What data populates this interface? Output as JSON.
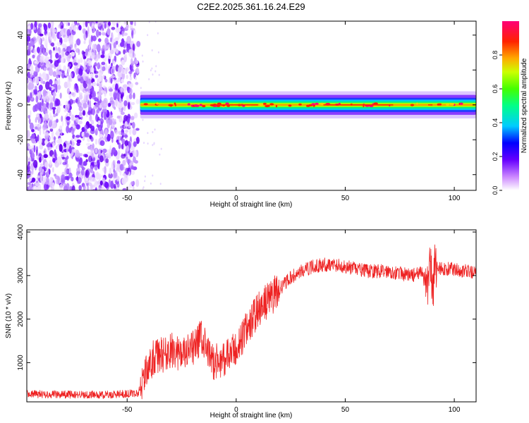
{
  "figure_title": "C2E2.2025.361.16.24.E29",
  "chart_data": [
    {
      "type": "heatmap",
      "title": "",
      "xlabel": "Height of straight line (km)",
      "ylabel": "Frequency (Hz)",
      "xlim": [
        -96,
        110
      ],
      "ylim": [
        -49,
        48
      ],
      "xticks": [
        -50,
        0,
        50,
        100
      ],
      "yticks": [
        -40,
        -20,
        0,
        20,
        40
      ],
      "colorbar": {
        "label": "Normalized spectral amplitude",
        "range": [
          0,
          1
        ],
        "ticks": [
          "0.0",
          "0.2",
          "0.4",
          "0.6",
          "0.8"
        ],
        "colors": [
          "#ffffff",
          "#cc88ff",
          "#6600ff",
          "#0000ff",
          "#00ccff",
          "#00ff88",
          "#44ff00",
          "#ccff00",
          "#ffaa00",
          "#ff2200",
          "#ff0077"
        ]
      },
      "regions": [
        {
          "x_range": [
            -96,
            -44
          ],
          "description": "broadband noise",
          "amplitude": 0.1
        },
        {
          "x_range": [
            -44,
            110
          ],
          "freq_center": 0,
          "freq_halfwidth": 3,
          "amplitude": 0.9
        }
      ]
    },
    {
      "type": "line",
      "title": "",
      "xlabel": "Height of straight line (km)",
      "ylabel": "SNR (10 * v/v)",
      "xlim": [
        -96,
        110
      ],
      "ylim": [
        100,
        4050
      ],
      "xticks": [
        -50,
        0,
        50,
        100
      ],
      "yticks": [
        1000,
        2000,
        3000,
        4000
      ],
      "line_color": "#ee2222",
      "series": [
        {
          "x": [
            -96,
            -80,
            -60,
            -45,
            -42,
            -38,
            -33,
            -28,
            -25,
            -20,
            -16,
            -13,
            -10,
            -5,
            0,
            5,
            10,
            15,
            20,
            25,
            30,
            35,
            40,
            45,
            50,
            55,
            60,
            65,
            70,
            75,
            80,
            85,
            88,
            89,
            90,
            91,
            95,
            100,
            105,
            110
          ],
          "y": [
            280,
            270,
            260,
            300,
            700,
            1100,
            1200,
            1300,
            1150,
            1300,
            1600,
            1200,
            1000,
            1100,
            1300,
            1800,
            2200,
            2450,
            2700,
            2950,
            3100,
            3200,
            3250,
            3250,
            3200,
            3150,
            3100,
            3100,
            3100,
            3050,
            3000,
            3050,
            2800,
            3500,
            2500,
            3200,
            3150,
            3150,
            3100,
            3050
          ]
        }
      ]
    }
  ]
}
